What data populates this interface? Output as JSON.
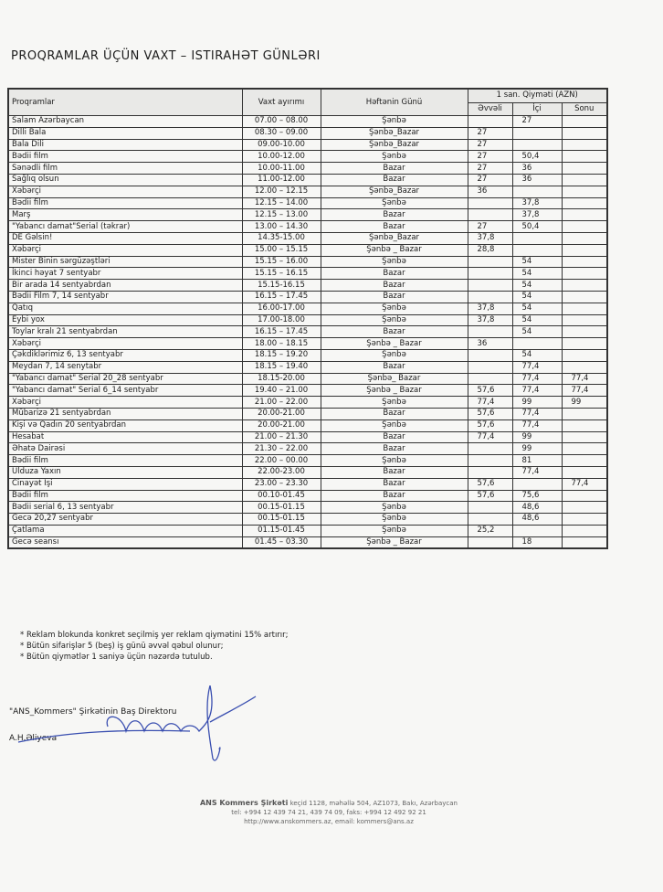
{
  "title": "Proqramlar üçün vaxt – istirahət günləri",
  "table": {
    "headers": {
      "program": "Proqramlar",
      "time": "Vaxt ayırımı",
      "day": "Həftənin Günü",
      "price_group": "1 san. Qiymәti (AZN)",
      "evvel": "Əvvəli",
      "ici": "İçi",
      "sonu": "Sonu"
    },
    "rows": [
      [
        "Salam Azərbaycan",
        "07.00 – 08.00",
        "Şənbə",
        "",
        "27",
        ""
      ],
      [
        "Dilli Bala",
        "08.30 – 09.00",
        "Şənbə_Bazar",
        "27",
        "",
        ""
      ],
      [
        "Bala Dili",
        "09.00-10.00",
        "Şənbə_Bazar",
        "27",
        "",
        ""
      ],
      [
        "Bədii film",
        "10.00-12.00",
        "Şənbə",
        "27",
        "50,4",
        ""
      ],
      [
        "Sənədli film",
        "10.00-11.00",
        "Bazar",
        "27",
        "36",
        ""
      ],
      [
        "Sağlıq olsun",
        "11.00-12.00",
        "Bazar",
        "27",
        "36",
        ""
      ],
      [
        "Xəbərçi",
        "12.00 – 12.15",
        "Şənbə_Bazar",
        "36",
        "",
        ""
      ],
      [
        "Bədii film",
        "12.15 – 14.00",
        "Şənbə",
        "",
        "37,8",
        ""
      ],
      [
        "Marş",
        "12.15 – 13.00",
        "Bazar",
        "",
        "37,8",
        ""
      ],
      [
        "\"Yabancı damat\"Serial (təkrar)",
        "13.00 – 14.30",
        "Bazar",
        "27",
        "50,4",
        ""
      ],
      [
        "DE Gəlsin!",
        "14.35-15.00",
        "Şənbə_Bazar",
        "37,8",
        "",
        ""
      ],
      [
        "Xəbərçi",
        "15.00 – 15.15",
        "Şənbə _ Bazar",
        "28,8",
        "",
        ""
      ],
      [
        "Mister Binin sərgüzəştləri",
        "15.15 – 16.00",
        "Şənbə",
        "",
        "54",
        ""
      ],
      [
        "İkinci həyat 7 sentyabr",
        "15.15 – 16.15",
        "Bazar",
        "",
        "54",
        ""
      ],
      [
        "Bir arada 14 sentyabrdan",
        "15.15-16.15",
        "Bazar",
        "",
        "54",
        ""
      ],
      [
        "Bədii Film 7, 14 sentyabr",
        "16.15 – 17.45",
        "Bazar",
        "",
        "54",
        ""
      ],
      [
        "Qatıq",
        "16.00-17.00",
        "Şənbə",
        "37,8",
        "54",
        ""
      ],
      [
        "Eybi yox",
        "17.00-18.00",
        "Şənbə",
        "37,8",
        "54",
        ""
      ],
      [
        "Toylar kralı 21 sentyabrdan",
        "16.15 – 17.45",
        "Bazar",
        "",
        "54",
        ""
      ],
      [
        "Xəbərçi",
        "18.00 – 18.15",
        "Şənbə _ Bazar",
        "36",
        "",
        ""
      ],
      [
        "Çəkdiklərimiz 6, 13 sentyabr",
        "18.15 – 19.20",
        "Şənbə",
        "",
        "54",
        ""
      ],
      [
        "Meydan 7, 14 senytabr",
        "18.15 – 19.40",
        "Bazar",
        "",
        "77,4",
        ""
      ],
      [
        "\"Yabancı damat\" Serial 20_28 sentyabr",
        "18.15-20.00",
        "Şənbə_ Bazar",
        "",
        "77,4",
        "77,4"
      ],
      [
        "\"Yabancı damat\" Serial 6_14 sentyabr",
        "19.40 – 21.00",
        "Şənbə _ Bazar",
        "57,6",
        "77,4",
        "77,4"
      ],
      [
        "Xəbərçi",
        "21.00 – 22.00",
        "Şənbə",
        "77,4",
        "99",
        "99"
      ],
      [
        "Mübarizə 21 sentyabrdan",
        "20.00-21.00",
        "Bazar",
        "57,6",
        "77,4",
        ""
      ],
      [
        "Kişi və Qadın 20 sentyabrdan",
        "20.00-21.00",
        "Şənbə",
        "57,6",
        "77,4",
        ""
      ],
      [
        "Hesabat",
        "21.00 – 21.30",
        "Bazar",
        "77,4",
        "99",
        ""
      ],
      [
        "Əhatə Dairəsi",
        "21.30 – 22.00",
        "Bazar",
        "",
        "99",
        ""
      ],
      [
        "Bədii film",
        "22.00 – 00.00",
        "Şənbə",
        "",
        "81",
        ""
      ],
      [
        "Ulduza Yaxın",
        "22.00-23.00",
        "Bazar",
        "",
        "77,4",
        ""
      ],
      [
        "Cinayət İşi",
        "23.00 – 23.30",
        "Bazar",
        "57,6",
        "",
        "77,4"
      ],
      [
        "Bədii film",
        "00.10-01.45",
        "Bazar",
        "57,6",
        "75,6",
        ""
      ],
      [
        "Bədii serial 6, 13 sentyabr",
        "00.15-01.15",
        "Şənbə",
        "",
        "48,6",
        ""
      ],
      [
        "Gecə 20,27 sentyabr",
        "00.15-01.15",
        "Şənbə",
        "",
        "48,6",
        ""
      ],
      [
        "Çatlama",
        "01.15-01.45",
        "Şənbə",
        "25,2",
        "",
        ""
      ],
      [
        "Gecə seansı",
        "01.45 – 03.30",
        "Şənbə _ Bazar",
        "",
        "18",
        ""
      ]
    ]
  },
  "notes": [
    "* Reklam blokunda konkret seçilmiş yer reklam qiymətini 15% artırır;",
    "* Bütün sifarişlər 5 (beş) iş günü əvvəl qəbul olunur;",
    "* Bütün qiymətlər 1 saniyə üçün nəzərdə tutulub."
  ],
  "signature": {
    "position": "\"ANS_Kommers\" Şirkətinin Baş Direktoru",
    "name": "A.H.Əliyeva"
  },
  "footer": {
    "company": "ANS Kommers Şirkəti",
    "address": "keçid 1128, məhəllə 504, AZ1073, Bakı, Azərbaycan",
    "phone": "tel: +994 12 439 74 21, 439 74 09, faks: +994 12 492 92 21",
    "web": "http://www.anskommers.az, email: kommers@ans.az"
  },
  "colors": {
    "ink": "#1c1c1c",
    "signature": "#3a4fb0"
  }
}
